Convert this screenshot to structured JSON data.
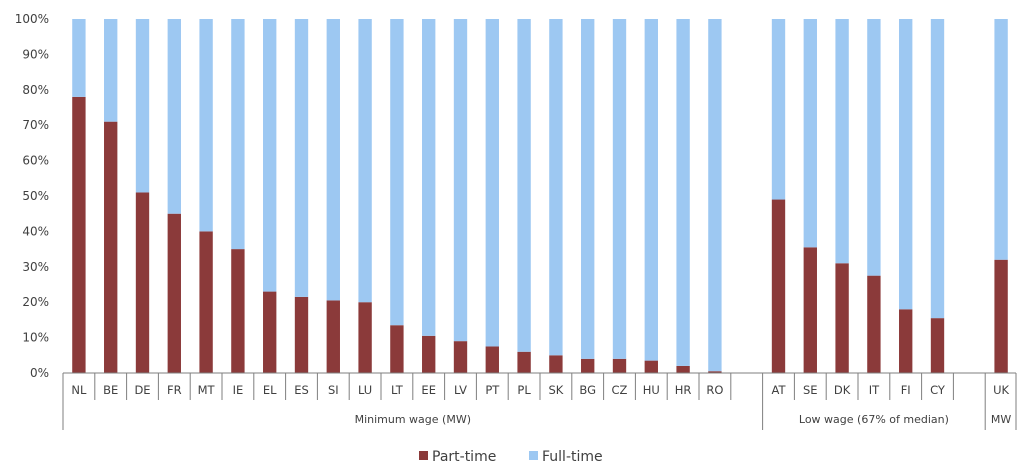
{
  "chart_data": {
    "type": "bar",
    "stacked": true,
    "percent_stacked": true,
    "title": "",
    "xlabel": "",
    "ylabel": "",
    "ylim": [
      0,
      100
    ],
    "yticks": [
      "0%",
      "10%",
      "20%",
      "30%",
      "40%",
      "50%",
      "60%",
      "70%",
      "80%",
      "90%",
      "100%"
    ],
    "grid": false,
    "legend_position": "bottom-center",
    "categories": [
      "NL",
      "BE",
      "DE",
      "FR",
      "MT",
      "IE",
      "EL",
      "ES",
      "SI",
      "LU",
      "LT",
      "EE",
      "LV",
      "PT",
      "PL",
      "SK",
      "BG",
      "CZ",
      "HU",
      "HR",
      "RO",
      "",
      "AT",
      "SE",
      "DK",
      "IT",
      "FI",
      "CY",
      "",
      "UK"
    ],
    "groups": [
      {
        "label": "Minimum wage (MW)",
        "categories": [
          "NL",
          "BE",
          "DE",
          "FR",
          "MT",
          "IE",
          "EL",
          "ES",
          "SI",
          "LU",
          "LT",
          "EE",
          "LV",
          "PT",
          "PL",
          "SK",
          "BG",
          "CZ",
          "HU",
          "HR",
          "RO",
          ""
        ]
      },
      {
        "label": "Low wage (67% of median)",
        "categories": [
          "AT",
          "SE",
          "DK",
          "IT",
          "FI",
          "CY",
          ""
        ]
      },
      {
        "label": "MW",
        "categories": [
          "UK"
        ]
      }
    ],
    "series": [
      {
        "name": "Part-time",
        "color": "#8B3A3A",
        "values": [
          78,
          71,
          51,
          45,
          40,
          35,
          23,
          21.5,
          20.5,
          20,
          13.5,
          10.5,
          9,
          7.5,
          6,
          5,
          4,
          4,
          3.5,
          2,
          0.5,
          null,
          49,
          35.5,
          31,
          27.5,
          18,
          15.5,
          null,
          32
        ]
      },
      {
        "name": "Full-time",
        "color": "#9DC8F2",
        "values": [
          22,
          29,
          49,
          55,
          60,
          65,
          77,
          78.5,
          79.5,
          80,
          86.5,
          89.5,
          91,
          92.5,
          94,
          95,
          96,
          96,
          96.5,
          98,
          99.5,
          null,
          51,
          64.5,
          69,
          72.5,
          82,
          84.5,
          null,
          68
        ]
      }
    ]
  }
}
